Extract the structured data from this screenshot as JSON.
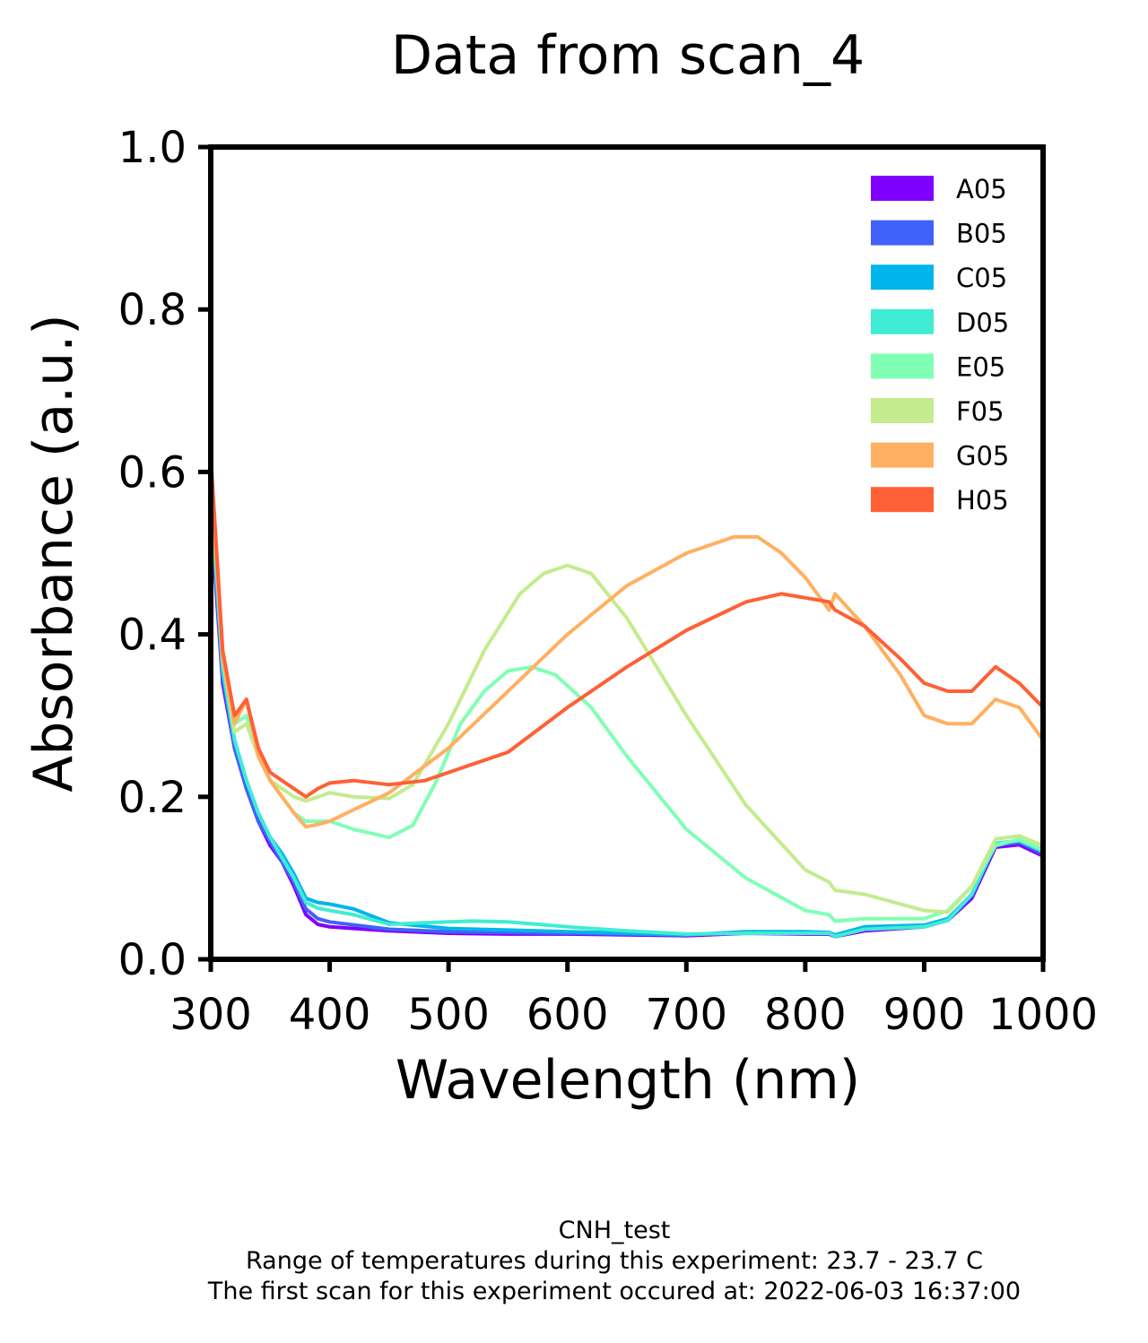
{
  "chart_data": {
    "type": "line",
    "title": "Data from scan_4",
    "xlabel": "Wavelength (nm)",
    "ylabel": "Absorbance (a.u.)",
    "xlim": [
      300,
      1000
    ],
    "ylim": [
      0.0,
      1.0
    ],
    "xticks": [
      300,
      400,
      500,
      600,
      700,
      800,
      900,
      1000
    ],
    "xtick_labels": [
      "300",
      "400",
      "500",
      "600",
      "700",
      "800",
      "900",
      "1000"
    ],
    "yticks": [
      0.0,
      0.2,
      0.4,
      0.6,
      0.8,
      1.0
    ],
    "ytick_labels": [
      "0.0",
      "0.2",
      "0.4",
      "0.6",
      "0.8",
      "1.0"
    ],
    "grid": false,
    "legend_position": "top-right",
    "series": [
      {
        "name": "A05",
        "color": "#8000ff",
        "x": [
          300,
          310,
          320,
          330,
          340,
          350,
          360,
          370,
          380,
          390,
          400,
          450,
          500,
          550,
          600,
          650,
          700,
          750,
          800,
          820,
          825,
          850,
          900,
          920,
          940,
          960,
          980,
          1000
        ],
        "y": [
          0.55,
          0.34,
          0.26,
          0.21,
          0.17,
          0.14,
          0.12,
          0.09,
          0.055,
          0.043,
          0.04,
          0.035,
          0.032,
          0.031,
          0.031,
          0.03,
          0.029,
          0.032,
          0.031,
          0.031,
          0.028,
          0.035,
          0.04,
          0.048,
          0.075,
          0.138,
          0.141,
          0.127
        ]
      },
      {
        "name": "B05",
        "color": "#4062fa",
        "x": [
          300,
          310,
          320,
          330,
          340,
          350,
          360,
          370,
          380,
          390,
          400,
          450,
          500,
          550,
          600,
          650,
          700,
          750,
          800,
          820,
          825,
          850,
          900,
          920,
          940,
          960,
          980,
          1000
        ],
        "y": [
          0.56,
          0.35,
          0.26,
          0.21,
          0.17,
          0.145,
          0.12,
          0.095,
          0.062,
          0.05,
          0.046,
          0.037,
          0.034,
          0.033,
          0.032,
          0.031,
          0.03,
          0.033,
          0.032,
          0.032,
          0.029,
          0.037,
          0.041,
          0.049,
          0.078,
          0.14,
          0.144,
          0.13
        ]
      },
      {
        "name": "C05",
        "color": "#00b5eb",
        "x": [
          300,
          310,
          320,
          330,
          340,
          350,
          360,
          370,
          380,
          390,
          400,
          420,
          450,
          500,
          550,
          600,
          650,
          700,
          750,
          800,
          820,
          825,
          850,
          900,
          920,
          940,
          960,
          980,
          1000
        ],
        "y": [
          0.57,
          0.35,
          0.27,
          0.22,
          0.18,
          0.15,
          0.13,
          0.105,
          0.075,
          0.07,
          0.068,
          0.062,
          0.045,
          0.038,
          0.036,
          0.034,
          0.032,
          0.03,
          0.034,
          0.034,
          0.033,
          0.03,
          0.04,
          0.042,
          0.05,
          0.08,
          0.142,
          0.146,
          0.133
        ]
      },
      {
        "name": "D05",
        "color": "#40ecd4",
        "x": [
          300,
          310,
          320,
          330,
          340,
          350,
          360,
          370,
          380,
          390,
          400,
          420,
          450,
          480,
          500,
          520,
          550,
          600,
          650,
          700,
          750,
          800,
          820,
          825,
          850,
          900,
          920,
          940,
          960,
          980,
          1000
        ],
        "y": [
          0.58,
          0.36,
          0.27,
          0.22,
          0.18,
          0.15,
          0.125,
          0.1,
          0.07,
          0.063,
          0.06,
          0.055,
          0.043,
          0.045,
          0.046,
          0.047,
          0.046,
          0.04,
          0.035,
          0.031,
          0.032,
          0.032,
          0.032,
          0.028,
          0.037,
          0.04,
          0.048,
          0.08,
          0.143,
          0.146,
          0.133
        ]
      },
      {
        "name": "E05",
        "color": "#80ffb4",
        "x": [
          300,
          310,
          320,
          330,
          340,
          350,
          360,
          370,
          380,
          400,
          420,
          450,
          470,
          490,
          510,
          530,
          550,
          570,
          590,
          620,
          650,
          700,
          750,
          800,
          820,
          825,
          850,
          900,
          920,
          940,
          960,
          980,
          1000
        ],
        "y": [
          0.6,
          0.37,
          0.29,
          0.3,
          0.25,
          0.22,
          0.2,
          0.18,
          0.17,
          0.17,
          0.16,
          0.15,
          0.165,
          0.22,
          0.29,
          0.33,
          0.355,
          0.36,
          0.35,
          0.31,
          0.25,
          0.16,
          0.1,
          0.06,
          0.055,
          0.047,
          0.05,
          0.05,
          0.06,
          0.09,
          0.14,
          0.148,
          0.135
        ]
      },
      {
        "name": "F05",
        "color": "#c4eb8d",
        "x": [
          300,
          310,
          320,
          330,
          340,
          350,
          360,
          370,
          380,
          400,
          420,
          450,
          470,
          500,
          530,
          560,
          580,
          600,
          620,
          650,
          700,
          750,
          800,
          820,
          825,
          850,
          900,
          920,
          940,
          960,
          980,
          1000
        ],
        "y": [
          0.6,
          0.37,
          0.28,
          0.29,
          0.25,
          0.22,
          0.21,
          0.2,
          0.195,
          0.205,
          0.2,
          0.198,
          0.215,
          0.29,
          0.38,
          0.45,
          0.475,
          0.485,
          0.475,
          0.42,
          0.3,
          0.19,
          0.11,
          0.095,
          0.085,
          0.08,
          0.06,
          0.058,
          0.09,
          0.148,
          0.152,
          0.14
        ]
      },
      {
        "name": "G05",
        "color": "#ffb060",
        "x": [
          300,
          310,
          320,
          330,
          340,
          350,
          360,
          370,
          380,
          390,
          400,
          450,
          500,
          550,
          600,
          650,
          700,
          740,
          760,
          780,
          800,
          820,
          825,
          850,
          880,
          900,
          920,
          940,
          960,
          980,
          1000
        ],
        "y": [
          0.6,
          0.37,
          0.29,
          0.32,
          0.25,
          0.22,
          0.2,
          0.18,
          0.163,
          0.166,
          0.17,
          0.205,
          0.26,
          0.33,
          0.4,
          0.46,
          0.5,
          0.52,
          0.52,
          0.5,
          0.47,
          0.43,
          0.45,
          0.41,
          0.35,
          0.3,
          0.29,
          0.29,
          0.32,
          0.31,
          0.27
        ]
      },
      {
        "name": "H05",
        "color": "#ff6036",
        "x": [
          300,
          310,
          320,
          330,
          340,
          350,
          360,
          370,
          380,
          390,
          400,
          420,
          450,
          480,
          500,
          550,
          600,
          650,
          700,
          750,
          780,
          800,
          820,
          825,
          850,
          880,
          900,
          920,
          940,
          960,
          980,
          1000
        ],
        "y": [
          0.62,
          0.38,
          0.3,
          0.32,
          0.26,
          0.23,
          0.22,
          0.21,
          0.2,
          0.21,
          0.217,
          0.22,
          0.215,
          0.22,
          0.23,
          0.255,
          0.31,
          0.36,
          0.405,
          0.44,
          0.45,
          0.445,
          0.44,
          0.43,
          0.41,
          0.37,
          0.34,
          0.33,
          0.33,
          0.36,
          0.34,
          0.31
        ]
      }
    ]
  },
  "caption": {
    "line1": "CNH_test",
    "line2": "Range of temperatures during this experiment: 23.7 - 23.7 C",
    "line3": "The first scan for this experiment occured at: 2022-06-03 16:37:00"
  }
}
